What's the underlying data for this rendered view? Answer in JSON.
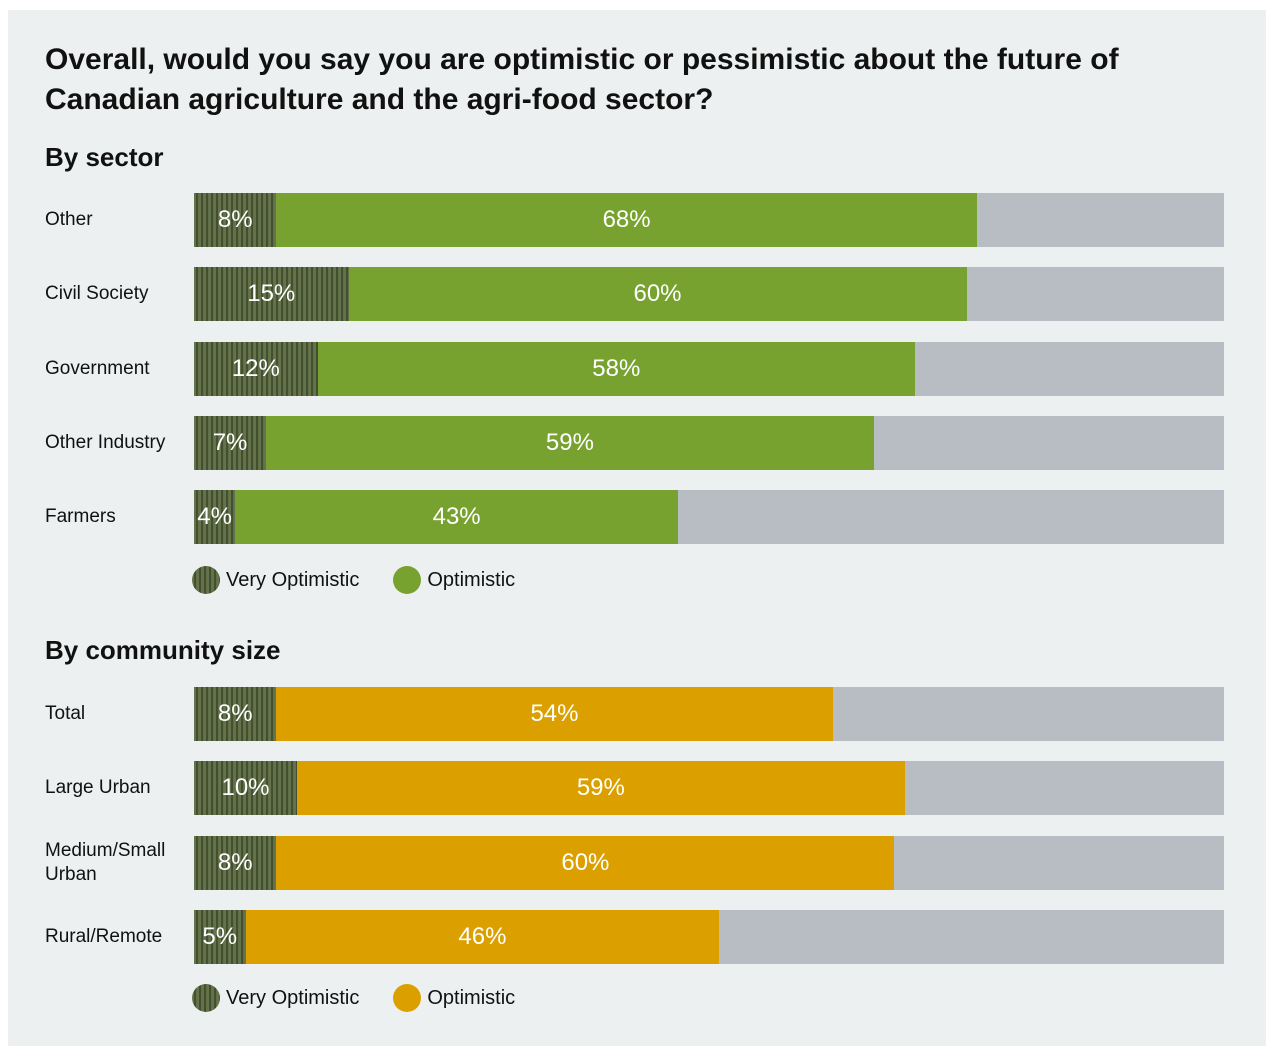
{
  "title": "Overall, would you say you are optimistic or pessimistic about the future of Canadian agriculture and the agri-food sector?",
  "chart_data": [
    {
      "type": "bar",
      "orientation": "horizontal",
      "stacked": true,
      "subtitle": "By sector",
      "categories": [
        "Other",
        "Civil Society",
        "Government",
        "Other Industry",
        "Farmers"
      ],
      "xlim": [
        0,
        100
      ],
      "series": [
        {
          "name": "Very Optimistic",
          "color": "#4f5e36",
          "values": [
            8,
            15,
            12,
            7,
            4
          ],
          "value_labels": [
            "8%",
            "15%",
            "12%",
            "7%",
            "4%"
          ]
        },
        {
          "name": "Optimistic",
          "color": "#78a22f",
          "values": [
            68,
            60,
            58,
            59,
            43
          ],
          "value_labels": [
            "68%",
            "60%",
            "58%",
            "59%",
            "43%"
          ]
        }
      ]
    },
    {
      "type": "bar",
      "orientation": "horizontal",
      "stacked": true,
      "subtitle": "By community size",
      "categories": [
        "Total",
        "Large Urban",
        "Medium/Small Urban",
        "Rural/Remote"
      ],
      "xlim": [
        0,
        100
      ],
      "series": [
        {
          "name": "Very Optimistic",
          "color": "#4f5e36",
          "values": [
            8,
            10,
            8,
            5
          ],
          "value_labels": [
            "8%",
            "10%",
            "8%",
            "5%"
          ]
        },
        {
          "name": "Optimistic",
          "color": "#dba000",
          "values": [
            54,
            59,
            60,
            46
          ],
          "value_labels": [
            "54%",
            "59%",
            "60%",
            "46%"
          ]
        }
      ]
    }
  ]
}
